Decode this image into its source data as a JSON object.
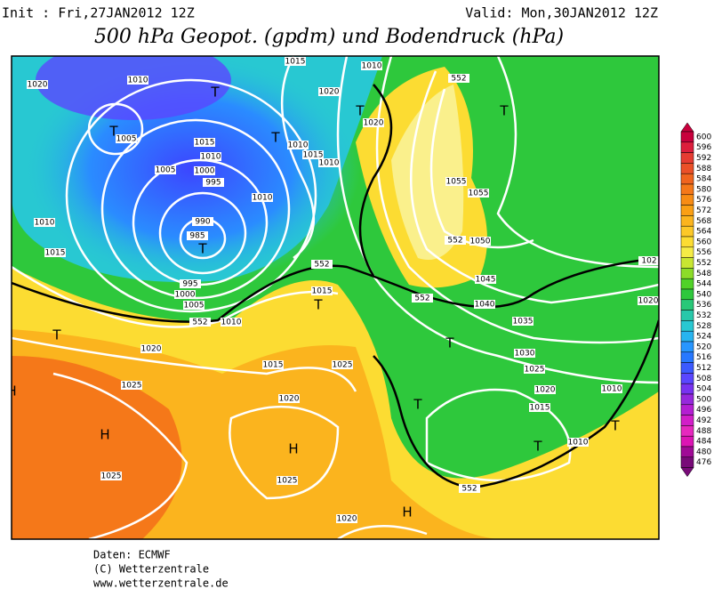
{
  "header": {
    "init": "Init : Fri,27JAN2012 12Z",
    "valid": "Valid: Mon,30JAN2012 12Z",
    "title": "500 hPa Geopot. (gpdm) und Bodendruck (hPa)"
  },
  "map": {
    "labels": [
      "1020",
      "1010",
      "1015",
      "1010",
      "1020",
      "T",
      "T",
      "1005",
      "1015",
      "1010",
      "T",
      "1010",
      "1015",
      "1010",
      "T",
      "1020",
      "1005",
      "1000",
      "995",
      "1010",
      "990",
      "985",
      "T",
      "1010",
      "1015",
      "995",
      "1000",
      "1005",
      "1010",
      "552",
      "552",
      "1015",
      "T",
      "T",
      "1020",
      "1015",
      "1025",
      "1025",
      "1020",
      "H",
      "H",
      "1025",
      "1025",
      "1020",
      "H",
      "T",
      "552",
      "T",
      "1010",
      "T",
      "1010",
      "1015",
      "1020",
      "1025",
      "1030",
      "T",
      "1035",
      "1040",
      "1045",
      "552",
      "1050",
      "552",
      "1055",
      "1055",
      "T",
      "552",
      "1020",
      "102",
      "H"
    ]
  },
  "colorbar": {
    "ticks": [
      600,
      596,
      592,
      588,
      584,
      580,
      576,
      572,
      568,
      564,
      560,
      556,
      552,
      548,
      544,
      540,
      536,
      532,
      528,
      524,
      520,
      516,
      512,
      508,
      504,
      500,
      496,
      492,
      488,
      484,
      480,
      476
    ],
    "colors": [
      "#c8003c",
      "#dc1e3c",
      "#e63c32",
      "#eb5028",
      "#f0641e",
      "#f57819",
      "#f88c14",
      "#fa9f14",
      "#fbb41e",
      "#fcc828",
      "#fcdc32",
      "#f5eb46",
      "#c8e632",
      "#8cdc28",
      "#50d228",
      "#2ec83c",
      "#28c878",
      "#28c8aa",
      "#28c8d2",
      "#28b4f0",
      "#2896ff",
      "#2878ff",
      "#3c5aff",
      "#5a46ff",
      "#7832f0",
      "#9628dc",
      "#b41ed2",
      "#d21ec8",
      "#e628be",
      "#dc14b4",
      "#a00a96",
      "#780a78"
    ]
  },
  "footer": [
    "Daten: ECMWF",
    "(C) Wetterzentrale",
    "www.wetterzentrale.de"
  ]
}
